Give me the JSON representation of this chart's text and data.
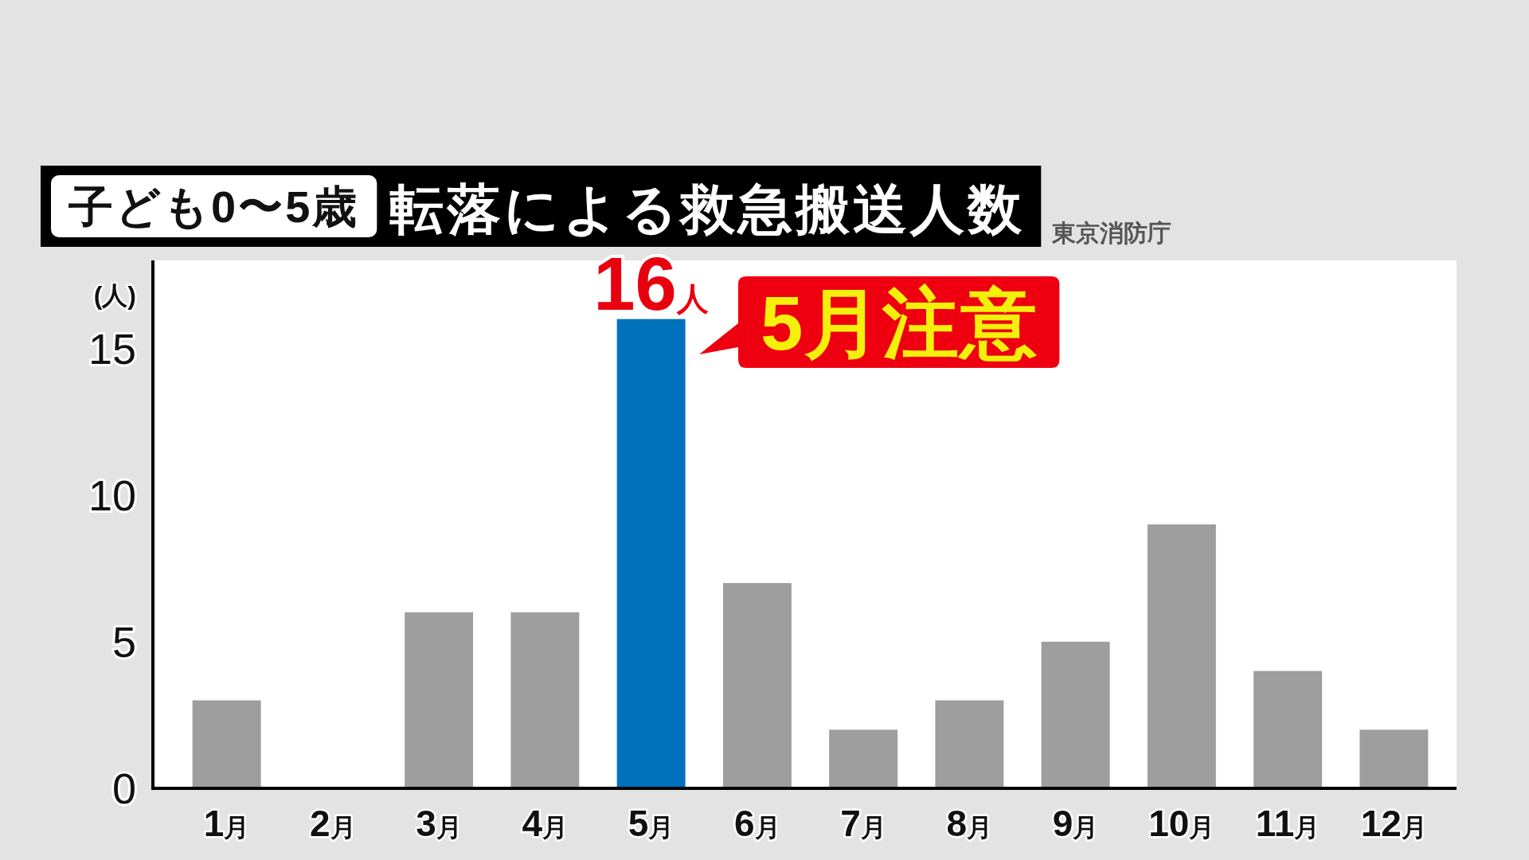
{
  "chart_data": {
    "type": "bar",
    "title": "転落による救急搬送人数",
    "subtitle": "子ども0〜5歳",
    "ylabel": "(人)",
    "categories": [
      "1月",
      "2月",
      "3月",
      "4月",
      "5月",
      "6月",
      "7月",
      "8月",
      "9月",
      "10月",
      "11月",
      "12月"
    ],
    "values": [
      3,
      0,
      6,
      6,
      16,
      7,
      2,
      3,
      5,
      9,
      4,
      2
    ],
    "colors": [
      "#9e9e9e",
      "#9e9e9e",
      "#9e9e9e",
      "#9e9e9e",
      "#0072bc",
      "#9e9e9e",
      "#9e9e9e",
      "#9e9e9e",
      "#9e9e9e",
      "#9e9e9e",
      "#9e9e9e",
      "#9e9e9e"
    ],
    "value_labels": [
      null,
      null,
      null,
      null,
      "16人",
      null,
      null,
      null,
      null,
      null,
      null,
      null
    ],
    "ylim": [
      0,
      18
    ],
    "yticks": [
      0,
      5,
      10,
      15
    ],
    "annotations": [
      "東京消防庁",
      "5月注意"
    ]
  }
}
